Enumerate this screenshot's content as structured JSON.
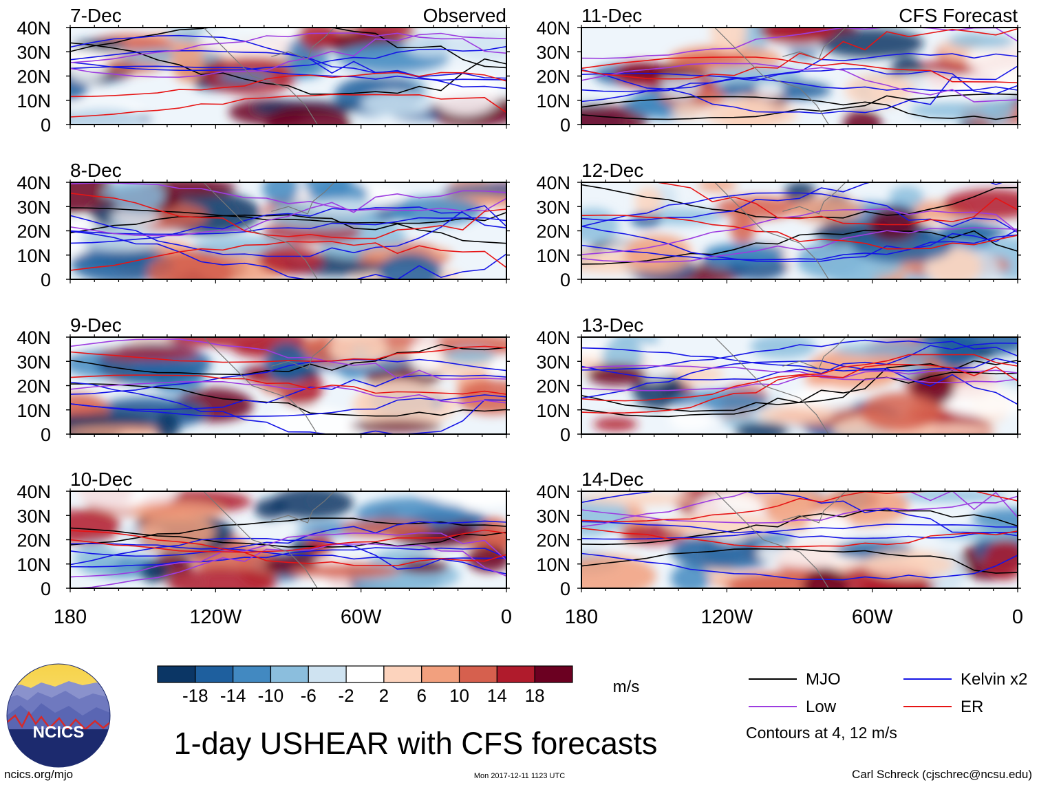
{
  "chart_data": {
    "type": "heatmap",
    "title": "1-day USHEAR with CFS forecasts",
    "variable": "USHEAR",
    "units": "m/s",
    "x_ticks": [
      "180",
      "120W",
      "60W",
      "0"
    ],
    "x_values": [
      -180,
      -120,
      -60,
      0
    ],
    "y_ticks": [
      "0",
      "10N",
      "20N",
      "30N",
      "40N"
    ],
    "y_values": [
      0,
      10,
      20,
      30,
      40
    ],
    "xlim": [
      -180,
      0
    ],
    "ylim": [
      0,
      40
    ],
    "columns": [
      {
        "header": "Observed",
        "panels": [
          "7-Dec",
          "8-Dec",
          "9-Dec",
          "10-Dec"
        ]
      },
      {
        "header": "CFS Forecast",
        "panels": [
          "11-Dec",
          "12-Dec",
          "13-Dec",
          "14-Dec"
        ]
      }
    ],
    "colorbar": {
      "labels": [
        "-18",
        "-14",
        "-10",
        "-6",
        "-2",
        "2",
        "6",
        "10",
        "14",
        "18"
      ],
      "colors": [
        "#0b3665",
        "#1e5f9e",
        "#4289c1",
        "#8bbedd",
        "#cfe3f1",
        "#ffffff",
        "#fcd3bd",
        "#f2a07e",
        "#d6604e",
        "#b01b2c",
        "#6b0021"
      ]
    },
    "legend": [
      {
        "label": "MJO",
        "color": "#000000"
      },
      {
        "label": "Kelvin x2",
        "color": "#1414e6"
      },
      {
        "label": "Low",
        "color": "#9c3ce0"
      },
      {
        "label": "ER",
        "color": "#e61414"
      }
    ],
    "contour_note": "Contours at 4, 12 m/s"
  },
  "logo": {
    "text": "NCICS"
  },
  "footer": {
    "url": "ncics.org/mjo",
    "timestamp": "Mon 2017-12-11 1123 UTC",
    "credit": "Carl Schreck (cjschrec@ncsu.edu)"
  }
}
